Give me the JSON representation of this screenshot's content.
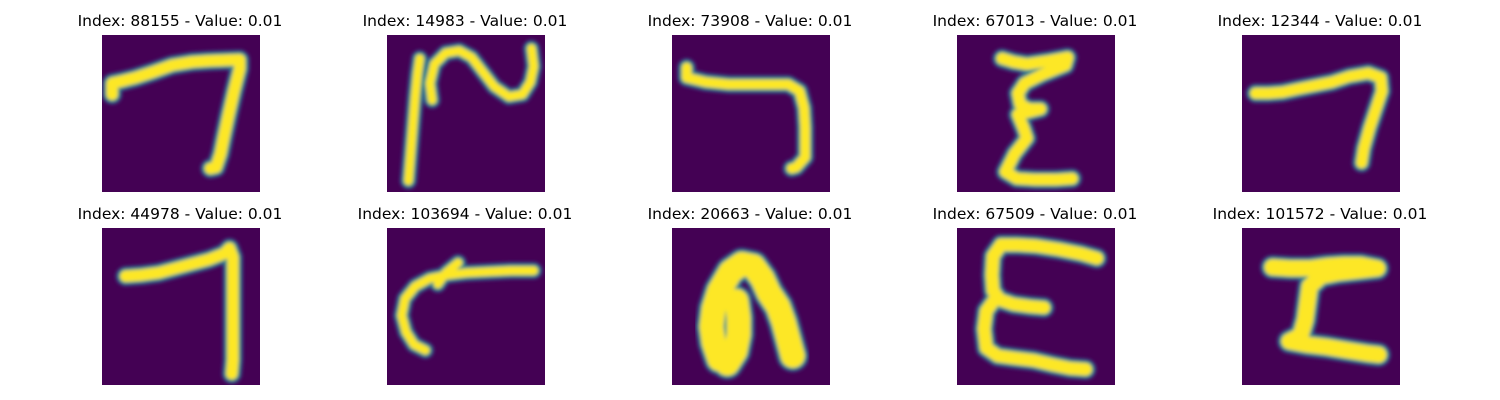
{
  "colors": {
    "background": "#440154",
    "stroke_core": "#fde725",
    "stroke_mid": "#21918c",
    "stroke_outer": "#3b528b"
  },
  "panels": [
    {
      "title": "Index: 88155 - Value: 0.01",
      "glyph": "seven"
    },
    {
      "title": "Index: 14983 - Value: 0.01",
      "glyph": "tilde-n"
    },
    {
      "title": "Index: 73908 - Value: 0.01",
      "glyph": "seven-flat"
    },
    {
      "title": "Index: 67013 - Value: 0.01",
      "glyph": "zeta"
    },
    {
      "title": "Index: 12344 - Value: 0.01",
      "glyph": "seven-short"
    },
    {
      "title": "Index: 44978 - Value: 0.01",
      "glyph": "seven-straight"
    },
    {
      "title": "Index: 103694 - Value: 0.01",
      "glyph": "c-hook"
    },
    {
      "title": "Index: 20663 - Value: 0.01",
      "glyph": "arch"
    },
    {
      "title": "Index: 67509 - Value: 0.01",
      "glyph": "e-shape"
    },
    {
      "title": "Index: 101572 - Value: 0.01",
      "glyph": "z-shape"
    }
  ]
}
